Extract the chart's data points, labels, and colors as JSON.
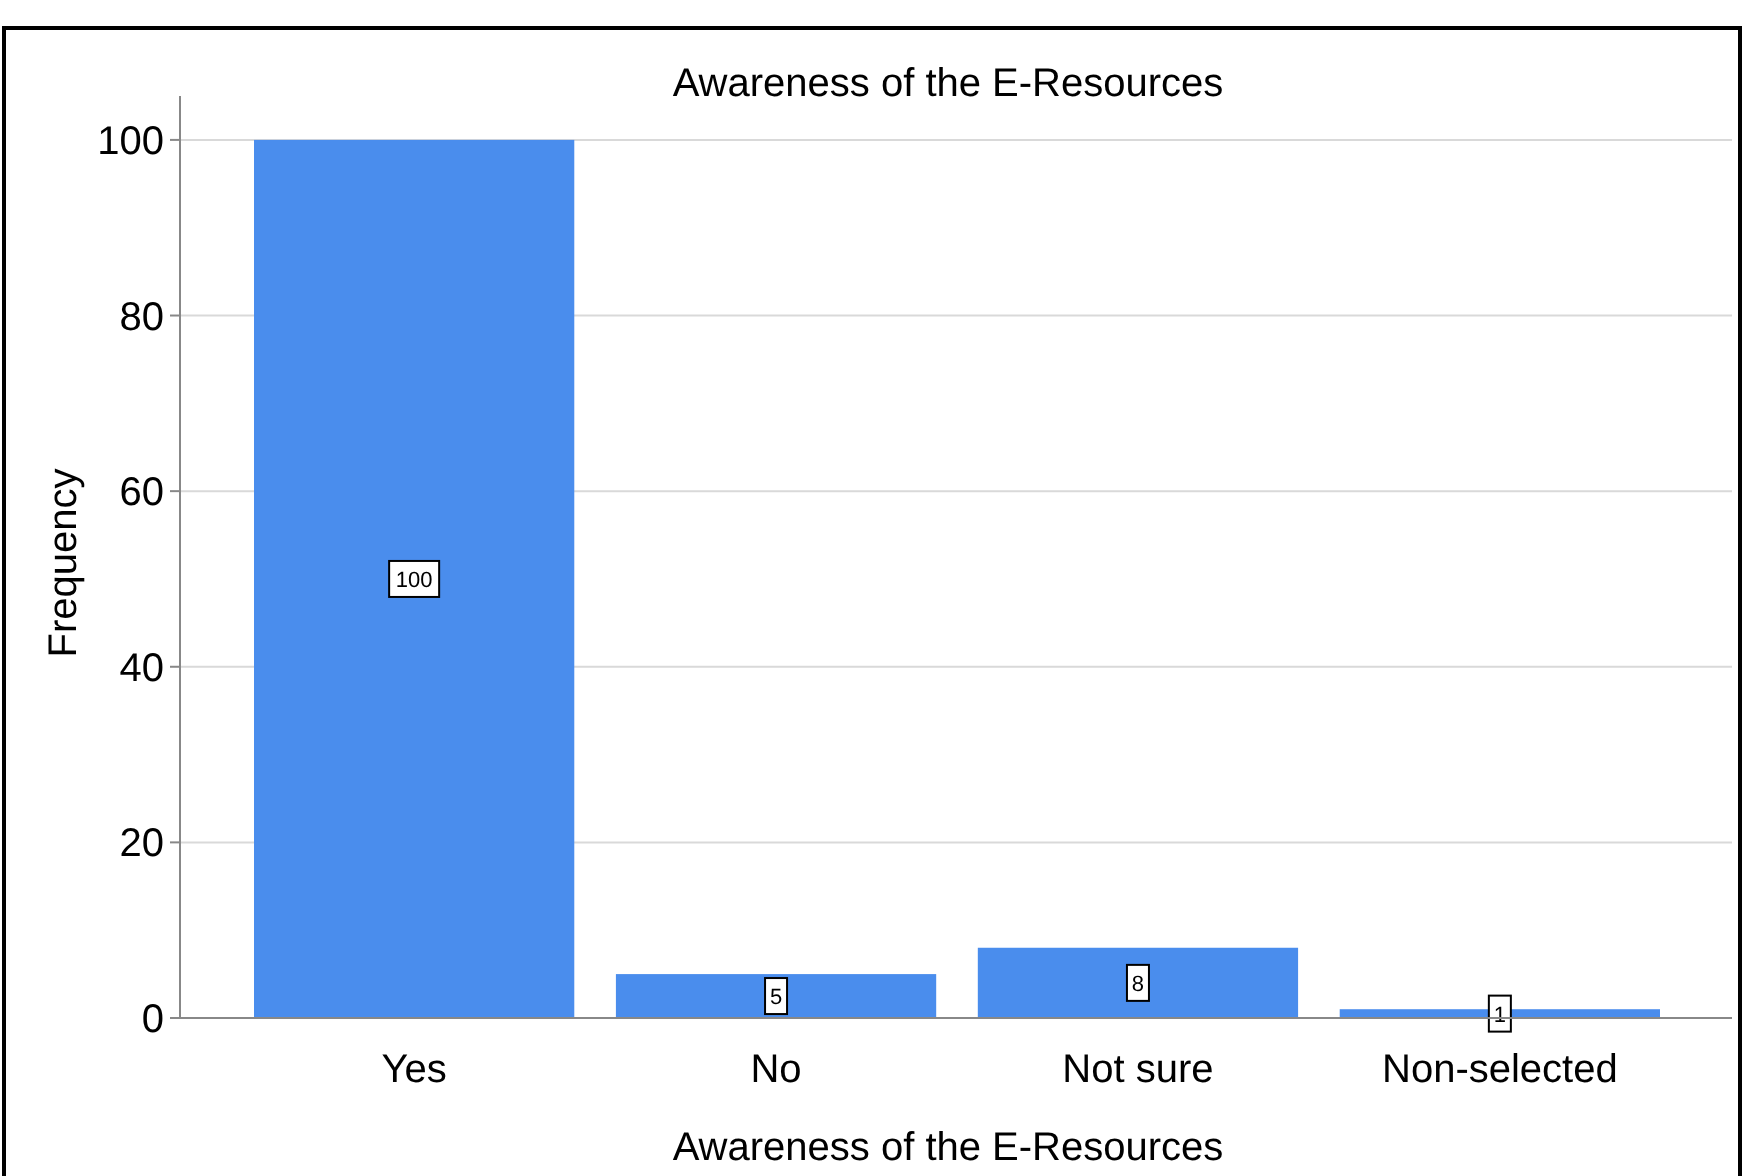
{
  "chart_data": {
    "type": "bar",
    "title": "Awareness of the E-Resources",
    "xlabel": "Awareness of the E-Resources",
    "ylabel": "Frequency",
    "categories": [
      "Yes",
      "No",
      "Not sure",
      "Non-selected"
    ],
    "values": [
      100,
      5,
      8,
      1
    ],
    "color": "#4a8ded",
    "ylim": [
      0,
      105
    ],
    "yticks": [
      0,
      20,
      40,
      60,
      80,
      100
    ],
    "grid": "y",
    "data_labels": true
  }
}
